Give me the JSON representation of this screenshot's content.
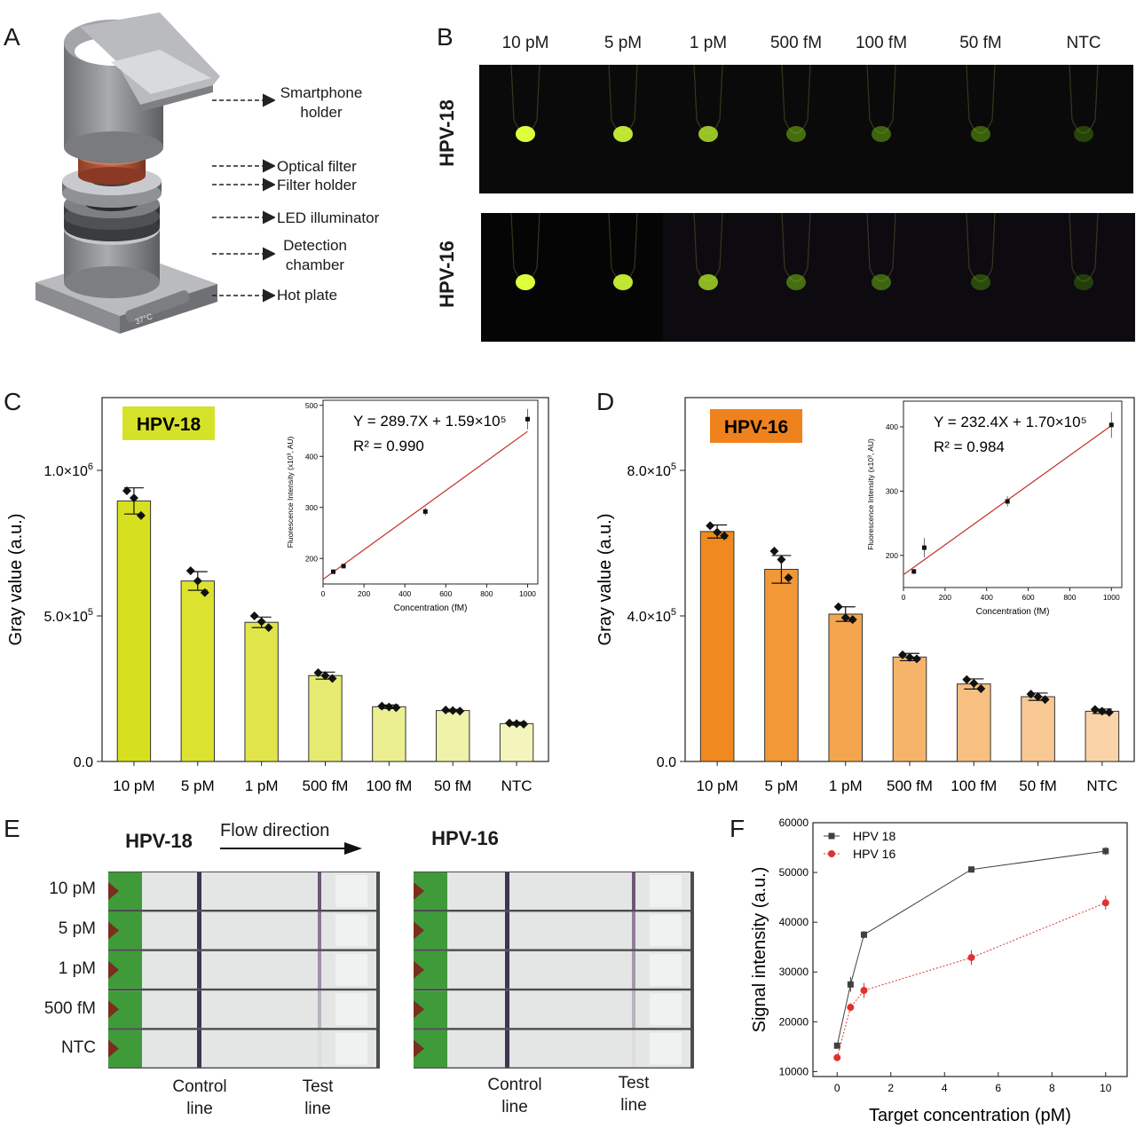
{
  "panelA": {
    "letter": "A",
    "labels": [
      {
        "l1": "Smartphone",
        "l2": "holder"
      },
      {
        "l1": "Optical filter",
        "l2": ""
      },
      {
        "l1": "Filter holder",
        "l2": ""
      },
      {
        "l1": "LED illuminator",
        "l2": ""
      },
      {
        "l1": "Detection",
        "l2": "chamber"
      },
      {
        "l1": "Hot plate",
        "l2": ""
      }
    ],
    "device_text": "37°C"
  },
  "panelB": {
    "letter": "B",
    "concentrations": [
      "10 pM",
      "5 pM",
      "1 pM",
      "500 fM",
      "100 fM",
      "50 fM",
      "NTC"
    ],
    "rows": [
      {
        "label": "HPV-18",
        "color": "#d6e22a",
        "glow": [
          1.0,
          0.9,
          0.75,
          0.35,
          0.3,
          0.28,
          0.12
        ]
      },
      {
        "label": "HPV-16",
        "color": "#f0821e",
        "glow": [
          1.0,
          0.9,
          0.7,
          0.35,
          0.3,
          0.15,
          0.08
        ]
      }
    ]
  },
  "chart_data": [
    {
      "panel": "C",
      "type": "bar",
      "tag": "HPV-18",
      "tag_color": "#d6e22a",
      "ylabel": "Gray value (a.u.)",
      "ylim": [
        0,
        1250000
      ],
      "yticks": [
        {
          "v": 0,
          "t": "0.0"
        },
        {
          "v": 500000,
          "t": "5.0×10"
        },
        {
          "v": 1000000,
          "t": "1.0×10"
        }
      ],
      "ytick_exp": [
        "",
        "5",
        "6"
      ],
      "categories": [
        "10 pM",
        "5 pM",
        "1 pM",
        "500 fM",
        "100 fM",
        "50 fM",
        "NTC"
      ],
      "values": [
        895000,
        620000,
        478000,
        295000,
        188000,
        175000,
        130000
      ],
      "errors": [
        45000,
        32000,
        18000,
        12000,
        6000,
        4000,
        5000
      ],
      "points": [
        [
          930000,
          905000,
          845000
        ],
        [
          655000,
          620000,
          580000
        ],
        [
          500000,
          480000,
          460000
        ],
        [
          305000,
          295000,
          285000
        ],
        [
          190000,
          187000,
          185000
        ],
        [
          177000,
          175000,
          173000
        ],
        [
          132000,
          130000,
          128000
        ]
      ],
      "bar_colors": [
        "#d6e01f",
        "#dbe330",
        "#e0e64a",
        "#e6ea70",
        "#ebef90",
        "#eff2a8",
        "#f3f5bd"
      ],
      "inset": {
        "equation": "Y = 289.7X + 1.59×10⁵",
        "r2": "R² = 0.990",
        "xlabel": "Concentration (fM)",
        "ylabel": "Fluorescence Intensity (x10³, AU)",
        "xlim": [
          0,
          1050
        ],
        "ylim": [
          150,
          510
        ],
        "xticks": [
          0,
          200,
          400,
          600,
          800,
          1000
        ],
        "yticks": [
          200,
          300,
          400,
          500
        ],
        "x": [
          50,
          100,
          500,
          1000
        ],
        "y": [
          174,
          185,
          292,
          473
        ],
        "err": [
          3,
          3,
          8,
          20
        ],
        "fit": [
          159,
          449
        ]
      }
    },
    {
      "panel": "D",
      "type": "bar",
      "tag": "HPV-16",
      "tag_color": "#f0821e",
      "ylabel": "Gray value (a.u.)",
      "ylim": [
        0,
        1000000
      ],
      "yticks": [
        {
          "v": 0,
          "t": "0.0"
        },
        {
          "v": 400000,
          "t": "4.0×10"
        },
        {
          "v": 800000,
          "t": "8.0×10"
        }
      ],
      "ytick_exp": [
        "",
        "5",
        "5"
      ],
      "categories": [
        "10 pM",
        "5 pM",
        "1 pM",
        "500 fM",
        "100 fM",
        "50 fM",
        "NTC"
      ],
      "values": [
        632000,
        528000,
        405000,
        287000,
        213000,
        178000,
        138000
      ],
      "errors": [
        18000,
        38000,
        20000,
        10000,
        14000,
        10000,
        6000
      ],
      "points": [
        [
          648000,
          630000,
          620000
        ],
        [
          578000,
          555000,
          505000
        ],
        [
          425000,
          395000,
          390000
        ],
        [
          293000,
          286000,
          282000
        ],
        [
          225000,
          215000,
          200000
        ],
        [
          185000,
          178000,
          170000
        ],
        [
          143000,
          138000,
          135000
        ]
      ],
      "bar_colors": [
        "#f08a1e",
        "#f29836",
        "#f4a64f",
        "#f6b46a",
        "#f7bf80",
        "#f8c994",
        "#fad4a8"
      ],
      "inset": {
        "equation": "Y = 232.4X + 1.70×10⁵",
        "r2": "R² = 0.984",
        "xlabel": "Concentration (fM)",
        "ylabel": "Fluorescence Intensity (x10³, AU)",
        "xlim": [
          0,
          1050
        ],
        "ylim": [
          150,
          440
        ],
        "xticks": [
          0,
          200,
          400,
          600,
          800,
          1000
        ],
        "yticks": [
          200,
          300,
          400
        ],
        "x": [
          50,
          100,
          500,
          1000
        ],
        "y": [
          175,
          212,
          284,
          403
        ],
        "err": [
          4,
          15,
          8,
          20
        ],
        "fit": [
          170,
          402
        ]
      }
    },
    {
      "panel": "F",
      "type": "line",
      "xlabel": "Target concentration (pM)",
      "ylabel": "Signal intensity (a.u.)",
      "xlim": [
        -0.9,
        10.8
      ],
      "ylim": [
        9000,
        60000
      ],
      "xticks": [
        0,
        2,
        4,
        6,
        8,
        10
      ],
      "yticks": [
        10000,
        20000,
        30000,
        40000,
        50000,
        60000
      ],
      "series": [
        {
          "name": "HPV 18",
          "color": "#404040",
          "marker": "square",
          "x": [
            0,
            0.5,
            1,
            5,
            10
          ],
          "y": [
            15200,
            27500,
            37500,
            50600,
            54300
          ],
          "err": [
            600,
            1500,
            700,
            600,
            800
          ]
        },
        {
          "name": "HPV 16",
          "color": "#e03030",
          "marker": "circle",
          "x": [
            0,
            0.5,
            1,
            5,
            10
          ],
          "y": [
            12800,
            22900,
            26300,
            32900,
            43900
          ],
          "err": [
            400,
            800,
            1500,
            1500,
            1400
          ]
        }
      ]
    }
  ],
  "panelE": {
    "letter": "E",
    "flow": "Flow direction",
    "tags": [
      {
        "label": "HPV-18",
        "color": "#d6e22a"
      },
      {
        "label": "HPV-16",
        "color": "#f0821e"
      }
    ],
    "rows": [
      "10 pM",
      "5 pM",
      "1 pM",
      "500 fM",
      "NTC"
    ],
    "left_test": [
      0.85,
      0.65,
      0.5,
      0.3,
      0.05
    ],
    "right_test": [
      0.85,
      0.6,
      0.45,
      0.3,
      0.05
    ],
    "control_l1": "Control",
    "control_l2": "line",
    "test_l1": "Test",
    "test_l2": "line"
  },
  "letters": {
    "C": "C",
    "D": "D",
    "F": "F"
  }
}
